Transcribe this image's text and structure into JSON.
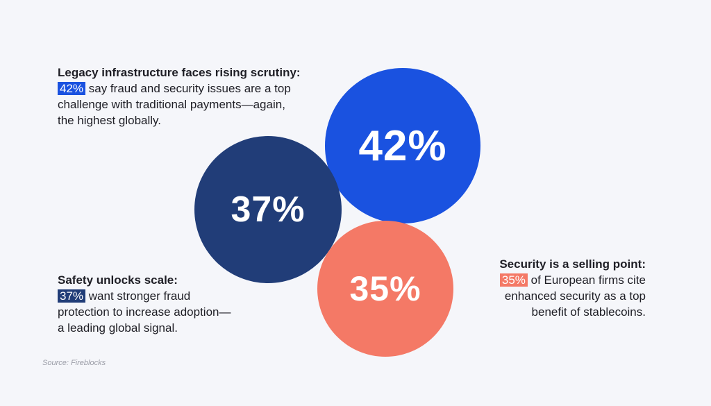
{
  "stats": {
    "top": {
      "value": "42%",
      "heading": "Legacy infrastructure faces rising scrutiny:",
      "highlight": "42%",
      "line1": " say fraud and security issues are a top",
      "line2": "challenge with traditional payments—again,",
      "line3": "the highest globally.",
      "color": "#1a52e0"
    },
    "left": {
      "value": "37%",
      "heading": "Safety unlocks scale:",
      "highlight": "37%",
      "line1": " want stronger fraud",
      "line2": "protection to increase adoption—",
      "line3": "a leading global signal.",
      "color": "#213d78"
    },
    "right": {
      "value": "35%",
      "heading": "Security is a selling point:",
      "highlight": "35%",
      "line1": " of European firms cite",
      "line2": "enhanced security as a top",
      "line3": "benefit of stablecoins.",
      "color": "#f47966"
    }
  },
  "source": "Source: Fireblocks"
}
